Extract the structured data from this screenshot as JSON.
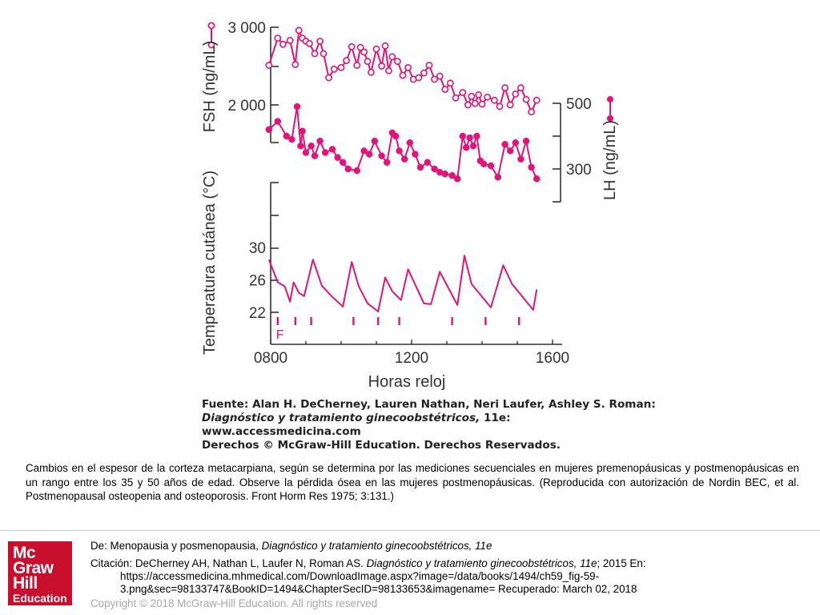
{
  "chart_data": {
    "type": "line",
    "xlabel": "Horas reloj",
    "x_ticks": [
      "0800",
      "1200",
      "1600"
    ],
    "x_tick_values": [
      8,
      12,
      16
    ],
    "xlim": [
      8,
      16.4
    ],
    "panels": [
      {
        "name": "FSH",
        "ylabel": "FSH (ng/mL)",
        "y_ticks": [
          "3 000",
          "2 000"
        ],
        "y_tick_values": [
          3000,
          2000
        ],
        "series": [
          {
            "name": "FSH",
            "marker": "open-circle",
            "color": "#e0147a",
            "x": [
              7.95,
              8.2,
              8.35,
              8.55,
              8.7,
              8.8,
              8.9,
              9.0,
              9.1,
              9.25,
              9.4,
              9.5,
              9.65,
              9.8,
              10.0,
              10.15,
              10.3,
              10.45,
              10.55,
              10.65,
              10.75,
              10.85,
              11.0,
              11.15,
              11.25,
              11.35,
              11.45,
              11.6,
              11.75,
              11.9,
              12.05,
              12.2,
              12.35,
              12.5,
              12.65,
              12.8,
              12.95,
              13.1,
              13.25,
              13.45,
              13.6,
              13.7,
              13.8,
              13.9,
              14.0,
              14.15,
              14.35,
              14.5,
              14.65,
              14.8,
              14.95,
              15.1,
              15.25,
              15.4,
              15.55
            ],
            "y": [
              2510,
              2860,
              2780,
              2830,
              2520,
              2960,
              2860,
              2820,
              2790,
              2660,
              2820,
              2660,
              2350,
              2460,
              2480,
              2570,
              2750,
              2510,
              2740,
              2680,
              2560,
              2420,
              2720,
              2500,
              2760,
              2440,
              2620,
              2560,
              2380,
              2480,
              2330,
              2350,
              2410,
              2510,
              2330,
              2370,
              2200,
              2280,
              2090,
              2160,
              2000,
              2110,
              2020,
              2130,
              2010,
              2100,
              2060,
              1980,
              2220,
              2000,
              2140,
              2220,
              2070,
              1910,
              2060
            ]
          }
        ]
      },
      {
        "name": "LH",
        "ylabel": "LH (ng/mL)",
        "y_ticks": [
          "500",
          "300"
        ],
        "y_tick_values": [
          500,
          300
        ],
        "series": [
          {
            "name": "LH",
            "marker": "filled-circle",
            "color": "#e0147a",
            "x": [
              7.95,
              8.2,
              8.45,
              8.6,
              8.75,
              8.85,
              8.9,
              9.0,
              9.15,
              9.25,
              9.4,
              9.55,
              9.75,
              9.9,
              10.05,
              10.2,
              10.45,
              10.65,
              10.8,
              10.95,
              11.15,
              11.3,
              11.45,
              11.55,
              11.65,
              11.8,
              11.95,
              12.1,
              12.25,
              12.45,
              12.65,
              12.8,
              12.95,
              13.15,
              13.3,
              13.45,
              13.55,
              13.65,
              13.75,
              13.85,
              13.95,
              14.05,
              14.25,
              14.45,
              14.65,
              14.8,
              14.95,
              15.1,
              15.25,
              15.4,
              15.55
            ],
            "y": [
              420,
              445,
              400,
              390,
              490,
              370,
              415,
              350,
              370,
              340,
              385,
              350,
              360,
              335,
              320,
              300,
              295,
              355,
              345,
              385,
              340,
              320,
              410,
              400,
              355,
              330,
              380,
              345,
              305,
              320,
              300,
              290,
              285,
              280,
              270,
              400,
              365,
              395,
              370,
              400,
              325,
              315,
              310,
              275,
              375,
              355,
              380,
              330,
              385,
              305,
              270
            ]
          }
        ]
      },
      {
        "name": "Temperatura",
        "ylabel": "Temperatura cutánea (°C)",
        "y_ticks": [
          "30",
          "26",
          "22"
        ],
        "y_tick_values": [
          30,
          26,
          22
        ],
        "series": [
          {
            "name": "Temperatura cutánea",
            "marker": "none",
            "color": "#e0147a",
            "x": [
              7.95,
              8.2,
              8.4,
              8.55,
              8.65,
              8.8,
              8.95,
              9.2,
              9.45,
              9.7,
              10.05,
              10.3,
              10.5,
              10.75,
              11.05,
              11.25,
              11.45,
              11.7,
              11.9,
              12.35,
              12.55,
              12.8,
              13.3,
              13.5,
              13.7,
              14.25,
              14.6,
              14.85,
              15.45,
              15.55
            ],
            "y": [
              28.5,
              25.7,
              25.2,
              23.3,
              25.7,
              24.4,
              24.0,
              28.5,
              25.3,
              24.1,
              22.7,
              28.2,
              25.2,
              23.1,
              22.1,
              26.3,
              24.6,
              23.5,
              27.3,
              23.1,
              23.0,
              27.0,
              22.9,
              29.0,
              25.5,
              22.6,
              27.8,
              25.5,
              22.3,
              24.8
            ]
          }
        ],
        "event_marks_x": [
          8.2,
          8.7,
          9.15,
          10.35,
          11.05,
          11.65,
          13.15,
          14.1,
          15.05
        ],
        "event_label": "F"
      }
    ]
  },
  "source": {
    "line1": "Fuente: Alan H. DeCherney, Lauren Nathan, Neri Laufer, Ashley S. Roman:",
    "book": "Diagnóstico y tratamiento ginecoobstétricos,",
    "edition": " 11e:",
    "line3": "www.accessmedicina.com",
    "line4": "Derechos © McGraw-Hill Education. Derechos Reservados."
  },
  "caption": " Cambios en el espesor de la corteza metacarpiana, según se determina por las mediciones secuenciales en mujeres premenopáusicas y postmenopáusicas en un rango entre los 35 y 50 años de edad. Observe la pérdida ósea en las mujeres postmenopáusicas. (Reproducida con autorización de Nordin BEC, et al. Postmenopausal osteopenia and osteoporosis. Front Horm Res 1975; 3:131.)",
  "logo": {
    "line1": "Mc",
    "line2": "Graw",
    "line3": "Hill",
    "line4": "Education",
    "color": "#c8102e"
  },
  "reference": {
    "de_prefix": "De: Menopausia y posmenopausia, ",
    "de_book": "Diagnóstico y tratamiento ginecoobstétricos, 11e",
    "cit_prefix": "Citación: DeCherney AH, Nathan L, Laufer N, Roman AS",
    "cit_sep": ". ",
    "cit_book": "Diagnóstico y tratamiento ginecoobstétricos, 11e",
    "cit_suffix": "; 2015 En:",
    "url1": "https://accessmedicina.mhmedical.com/DownloadImage.aspx?image=/data/books/1494/ch59_fig-59-",
    "url2": "3.png&sec=98133747&BookID=1494&ChapterSecID=98133653&imagename= Recuperado: March 02, 2018"
  },
  "copyright": "Copyright © 2018 McGraw-Hill Education. All rights reserved"
}
